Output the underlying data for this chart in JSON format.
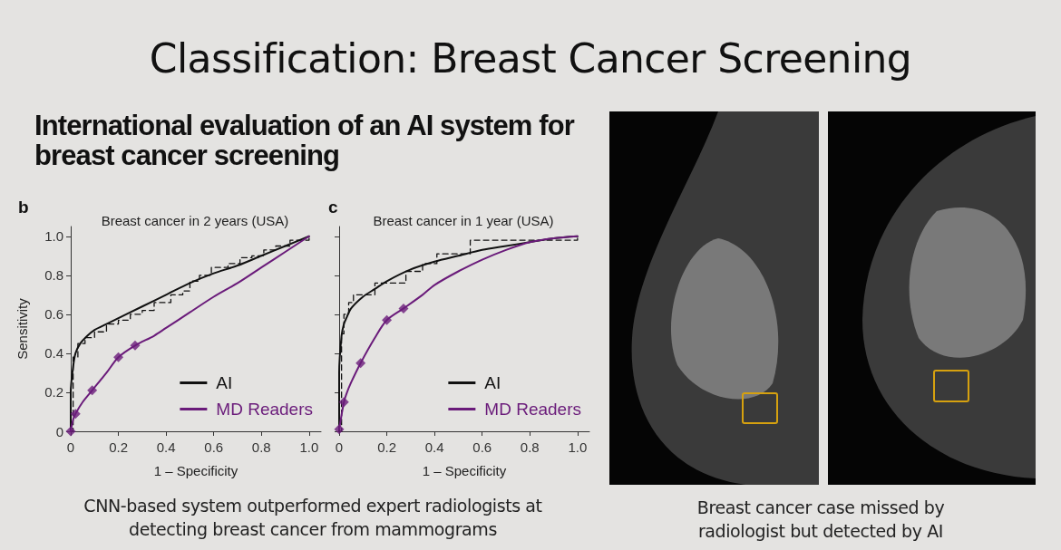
{
  "chart_data": [
    {
      "type": "other",
      "title": "Classification: Breast Cancer Screening",
      "subtitle": "International evaluation of an AI system for breast cancer screening",
      "annotations": [
        "CNN-based system outperformed expert radiologists at detecting breast cancer from mammograms",
        "Breast cancer case missed by radiologist but detected by AI"
      ]
    },
    {
      "type": "line",
      "title": "Breast cancer in 2 years (USA)",
      "xlabel": "1 – Specificity",
      "ylabel": "Sensitivity",
      "annotations": [
        "b"
      ],
      "xlim": [
        0,
        1.05
      ],
      "ylim": [
        0,
        1.05
      ],
      "xticks": [
        0,
        0.2,
        0.4,
        0.6,
        0.8,
        {
          "value": 1,
          "label": "1.0"
        }
      ],
      "yticks": [
        0,
        0.2,
        0.4,
        0.6,
        0.8,
        {
          "value": 1,
          "label": "1.0"
        }
      ],
      "grid": false,
      "legend": "bottom right",
      "series": [
        {
          "name": "AI",
          "type": "line",
          "color": "#111111",
          "marker": "none",
          "line_style": "solid",
          "x": [
            0,
            0,
            0.01,
            0.02,
            0.04,
            0.07,
            0.1,
            0.15,
            0.2,
            0.3,
            0.4,
            0.5,
            0.6,
            0.7,
            0.8,
            0.9,
            1.0
          ],
          "values": [
            0,
            0.2,
            0.33,
            0.4,
            0.45,
            0.49,
            0.52,
            0.55,
            0.58,
            0.64,
            0.7,
            0.76,
            0.81,
            0.85,
            0.9,
            0.95,
            1.0
          ]
        },
        {
          "type": "step",
          "color": "#111111",
          "marker": "none",
          "line_style": "dashed",
          "x": [
            0,
            0.01,
            0.03,
            0.06,
            0.1,
            0.15,
            0.2,
            0.25,
            0.3,
            0.35,
            0.42,
            0.47,
            0.5,
            0.54,
            0.59,
            0.66,
            0.71,
            0.76,
            0.81,
            0.86,
            0.92,
            1.0
          ],
          "values": [
            0,
            0.38,
            0.45,
            0.48,
            0.51,
            0.55,
            0.57,
            0.6,
            0.62,
            0.66,
            0.7,
            0.72,
            0.77,
            0.8,
            0.84,
            0.86,
            0.89,
            0.9,
            0.93,
            0.95,
            0.98,
            1.0
          ]
        },
        {
          "name": "MD Readers",
          "type": "line",
          "color": "#6a1b7a",
          "marker": "none",
          "line_style": "solid",
          "x": [
            0,
            0.01,
            0.02,
            0.05,
            0.09,
            0.15,
            0.2,
            0.27,
            0.35,
            0.4,
            0.5,
            0.6,
            0.7,
            0.8,
            0.9,
            1.0
          ],
          "values": [
            0,
            0.06,
            0.09,
            0.15,
            0.21,
            0.3,
            0.38,
            0.44,
            0.49,
            0.53,
            0.61,
            0.69,
            0.76,
            0.84,
            0.92,
            1.0
          ]
        },
        {
          "type": "scatter",
          "color": "#6a1b7a",
          "marker": "diamond",
          "x": [
            0,
            0.02,
            0.09,
            0.2,
            0.27
          ],
          "values": [
            0,
            0.09,
            0.21,
            0.38,
            0.44
          ]
        }
      ]
    },
    {
      "type": "line",
      "title": "Breast cancer in 1 year (USA)",
      "xlabel": "1 – Specificity",
      "annotations": [
        "c"
      ],
      "xlim": [
        0,
        1.05
      ],
      "ylim": [
        0,
        1.05
      ],
      "xticks": [
        0,
        0.2,
        0.4,
        0.6,
        0.8,
        {
          "value": 1,
          "label": "1.0"
        }
      ],
      "yticks": [
        0,
        0.2,
        0.4,
        0.6,
        0.8,
        1
      ],
      "tick_labels": "x",
      "grid": false,
      "legend": "bottom right",
      "series": [
        {
          "name": "AI",
          "type": "line",
          "color": "#111111",
          "marker": "none",
          "line_style": "solid",
          "x": [
            0,
            0,
            0.01,
            0.02,
            0.03,
            0.05,
            0.1,
            0.15,
            0.2,
            0.3,
            0.4,
            0.5,
            0.6,
            0.7,
            0.8,
            0.9,
            1.0
          ],
          "values": [
            0,
            0.3,
            0.49,
            0.55,
            0.58,
            0.63,
            0.69,
            0.73,
            0.77,
            0.83,
            0.87,
            0.9,
            0.93,
            0.95,
            0.97,
            0.99,
            1.0
          ]
        },
        {
          "type": "step",
          "color": "#111111",
          "marker": "none",
          "line_style": "dashed",
          "x": [
            0,
            0.01,
            0.02,
            0.04,
            0.06,
            0.15,
            0.28,
            0.35,
            0.41,
            0.55,
            1.0
          ],
          "values": [
            0,
            0.5,
            0.6,
            0.66,
            0.7,
            0.76,
            0.82,
            0.86,
            0.91,
            0.98,
            1.0
          ]
        },
        {
          "name": "MD Readers",
          "type": "line",
          "color": "#6a1b7a",
          "marker": "none",
          "line_style": "solid",
          "x": [
            0,
            0.02,
            0.03,
            0.05,
            0.09,
            0.15,
            0.2,
            0.27,
            0.35,
            0.4,
            0.5,
            0.6,
            0.7,
            0.8,
            0.9,
            1.0
          ],
          "values": [
            0.01,
            0.15,
            0.19,
            0.25,
            0.35,
            0.48,
            0.57,
            0.63,
            0.7,
            0.75,
            0.82,
            0.88,
            0.93,
            0.97,
            0.99,
            1.0
          ]
        },
        {
          "type": "scatter",
          "color": "#6a1b7a",
          "marker": "diamond",
          "x": [
            0,
            0.02,
            0.09,
            0.2,
            0.27
          ],
          "values": [
            0.01,
            0.15,
            0.35,
            0.57,
            0.63
          ]
        }
      ]
    }
  ]
}
